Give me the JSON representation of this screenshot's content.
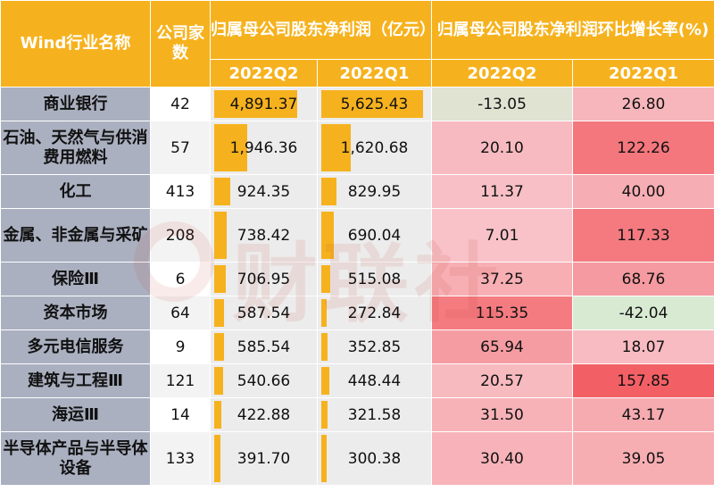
{
  "chart_data": {
    "type": "table",
    "header": {
      "industry": "Wind行业名称",
      "count": "公司家数",
      "profit_group": "归属母公司股东净利润（亿元）",
      "growth_group": "归属母公司股东净利润环比增长率(%)",
      "periods": [
        "2022Q2",
        "2022Q1",
        "2022Q2",
        "2022Q1"
      ]
    },
    "rows": [
      {
        "industry": "商业银行",
        "count": "42",
        "profit_q2": "4,891.37",
        "profit_q1": "5,625.43",
        "growth_q2": "-13.05",
        "growth_q1": "26.80",
        "p2": 4891.37,
        "p1": 5625.43,
        "g2": -13.05,
        "g1": 26.8
      },
      {
        "industry": "石油、天然气与供消费用燃料",
        "count": "57",
        "profit_q2": "1,946.36",
        "profit_q1": "1,620.68",
        "growth_q2": "20.10",
        "growth_q1": "122.26",
        "p2": 1946.36,
        "p1": 1620.68,
        "g2": 20.1,
        "g1": 122.26
      },
      {
        "industry": "化工",
        "count": "413",
        "profit_q2": "924.35",
        "profit_q1": "829.95",
        "growth_q2": "11.37",
        "growth_q1": "40.00",
        "p2": 924.35,
        "p1": 829.95,
        "g2": 11.37,
        "g1": 40.0
      },
      {
        "industry": "金属、非金属与采矿",
        "count": "208",
        "profit_q2": "738.42",
        "profit_q1": "690.04",
        "growth_q2": "7.01",
        "growth_q1": "117.33",
        "p2": 738.42,
        "p1": 690.04,
        "g2": 7.01,
        "g1": 117.33
      },
      {
        "industry": "保险Ⅲ",
        "count": "6",
        "profit_q2": "706.95",
        "profit_q1": "515.08",
        "growth_q2": "37.25",
        "growth_q1": "68.76",
        "p2": 706.95,
        "p1": 515.08,
        "g2": 37.25,
        "g1": 68.76
      },
      {
        "industry": "资本市场",
        "count": "64",
        "profit_q2": "587.54",
        "profit_q1": "272.84",
        "growth_q2": "115.35",
        "growth_q1": "-42.04",
        "p2": 587.54,
        "p1": 272.84,
        "g2": 115.35,
        "g1": -42.04
      },
      {
        "industry": "多元电信服务",
        "count": "9",
        "profit_q2": "585.54",
        "profit_q1": "352.85",
        "growth_q2": "65.94",
        "growth_q1": "18.07",
        "p2": 585.54,
        "p1": 352.85,
        "g2": 65.94,
        "g1": 18.07
      },
      {
        "industry": "建筑与工程Ⅲ",
        "count": "121",
        "profit_q2": "540.66",
        "profit_q1": "448.44",
        "growth_q2": "20.57",
        "growth_q1": "157.85",
        "p2": 540.66,
        "p1": 448.44,
        "g2": 20.57,
        "g1": 157.85
      },
      {
        "industry": "海运Ⅲ",
        "count": "14",
        "profit_q2": "422.88",
        "profit_q1": "321.58",
        "growth_q2": "31.50",
        "growth_q1": "43.17",
        "p2": 422.88,
        "p1": 321.58,
        "g2": 31.5,
        "g1": 43.17
      },
      {
        "industry": "半导体产品与半导体设备",
        "count": "133",
        "profit_q2": "391.70",
        "profit_q1": "300.38",
        "growth_q2": "30.40",
        "growth_q1": "39.05",
        "p2": 391.7,
        "p1": 300.38,
        "g2": 30.4,
        "g1": 39.05
      }
    ],
    "bar_color": "#f6b21e",
    "color_scale": {
      "min": "#d9ead3",
      "mid": "#f8c7cd",
      "max": "#f26065"
    }
  },
  "watermark": {
    "text": "财联社"
  }
}
